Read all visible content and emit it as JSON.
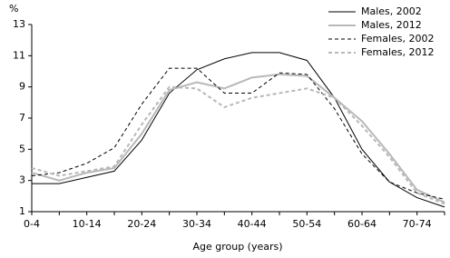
{
  "chart_data": {
    "type": "line",
    "y_axis_label": "%",
    "x_axis_label": "Age group (years)",
    "categories": [
      "0-4",
      null,
      "10-14",
      null,
      "20-24",
      null,
      "30-34",
      null,
      "40-44",
      null,
      "50-54",
      null,
      "60-64",
      null,
      "70-74",
      null
    ],
    "ylim": [
      1,
      13
    ],
    "yticks": [
      1,
      3,
      5,
      7,
      9,
      11,
      13
    ],
    "legend": "top-right",
    "series": [
      {
        "name": "Males, 2002",
        "color": "#000000",
        "dash": false,
        "values": [
          2.8,
          2.8,
          3.2,
          3.6,
          5.6,
          8.6,
          10.1,
          10.8,
          11.2,
          11.2,
          10.7,
          8.3,
          5.0,
          2.9,
          1.9,
          1.3
        ]
      },
      {
        "name": "Males, 2012",
        "color": "#b8b8b8",
        "dash": false,
        "values": [
          3.5,
          3.0,
          3.5,
          3.8,
          6.0,
          8.8,
          9.3,
          8.9,
          9.6,
          9.8,
          9.7,
          8.3,
          6.8,
          4.7,
          2.4,
          1.6
        ]
      },
      {
        "name": "Females, 2002",
        "color": "#000000",
        "dash": true,
        "values": [
          3.3,
          3.5,
          4.1,
          5.1,
          7.9,
          10.2,
          10.2,
          8.6,
          8.6,
          9.9,
          9.8,
          7.6,
          4.7,
          2.9,
          2.2,
          1.8
        ]
      },
      {
        "name": "Females, 2012",
        "color": "#b8b8b8",
        "dash": true,
        "values": [
          3.8,
          3.3,
          3.6,
          3.9,
          6.6,
          9.0,
          8.9,
          7.7,
          8.3,
          8.6,
          8.9,
          8.3,
          6.5,
          4.5,
          2.2,
          1.5
        ]
      }
    ]
  }
}
